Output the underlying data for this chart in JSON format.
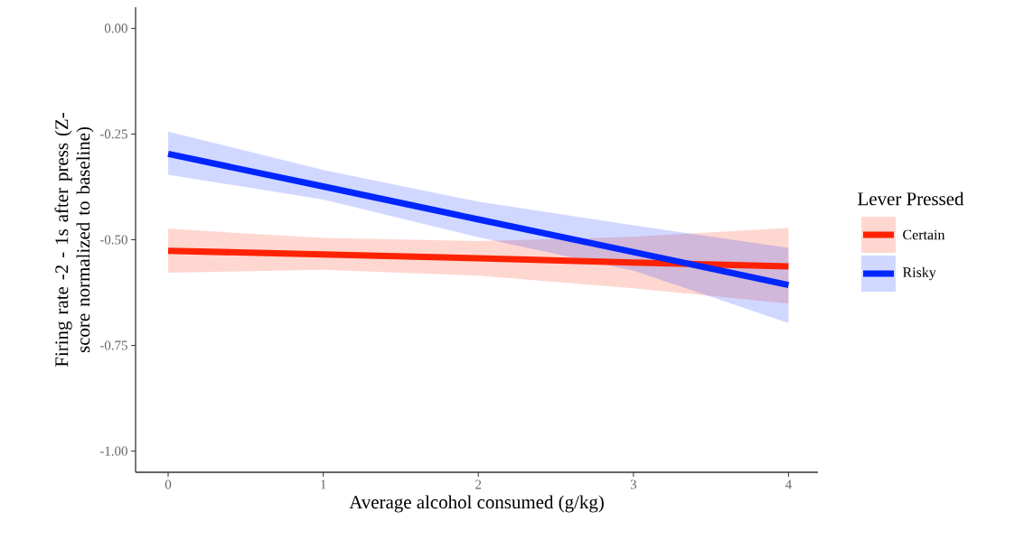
{
  "chart_data": {
    "type": "line",
    "xlabel": "Average alcohol consumed (g/kg)",
    "ylabel": "Firing rate -2 - 1s after press (Z-score normalized to baseline)",
    "legend_title": "Lever Pressed",
    "legend": "right",
    "xlim": [
      -0.21,
      4.19
    ],
    "xticks": [
      0,
      1,
      2,
      3,
      4
    ],
    "ylim": [
      -1.05,
      0.05
    ],
    "yticks": [
      {
        "value": 0,
        "label": "0.00"
      },
      {
        "value": -0.25,
        "label": "-0.25"
      },
      {
        "value": -0.5,
        "label": "-0.50"
      },
      {
        "value": -0.75,
        "label": "-0.75"
      },
      {
        "value": -1,
        "label": "-1.00"
      }
    ],
    "series": [
      {
        "name": "Certain",
        "color": "#ff2200",
        "x": [
          0,
          1,
          2,
          3,
          4
        ],
        "values": [
          -0.526,
          -0.535,
          -0.544,
          -0.554,
          -0.563
        ],
        "lower": [
          -0.578,
          -0.571,
          -0.585,
          -0.615,
          -0.651
        ],
        "upper": [
          -0.474,
          -0.496,
          -0.503,
          -0.493,
          -0.472
        ]
      },
      {
        "name": "Risky",
        "color": "#0026ff",
        "x": [
          0,
          1,
          2,
          3,
          4
        ],
        "values": [
          -0.297,
          -0.374,
          -0.452,
          -0.529,
          -0.607
        ],
        "lower": [
          -0.346,
          -0.405,
          -0.494,
          -0.573,
          -0.697
        ],
        "upper": [
          -0.244,
          -0.335,
          -0.41,
          -0.466,
          -0.519
        ]
      }
    ]
  }
}
